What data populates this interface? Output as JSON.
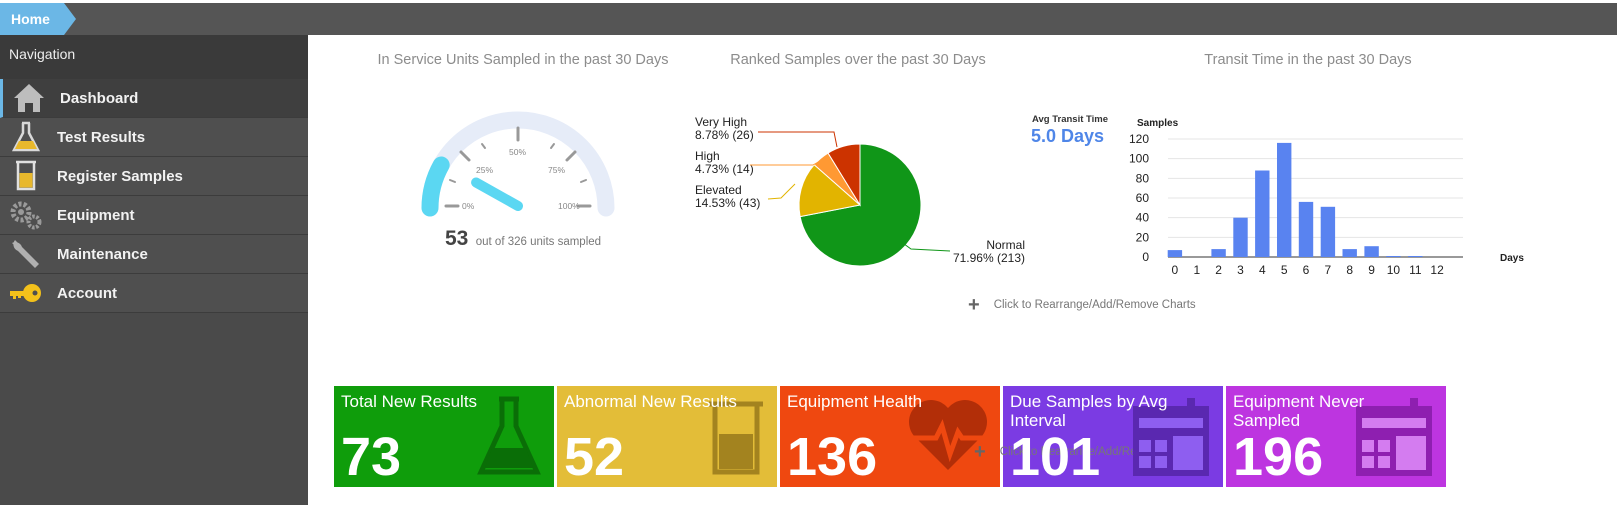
{
  "breadcrumb": {
    "home": "Home"
  },
  "sidebar": {
    "title": "Navigation",
    "items": [
      {
        "label": "Dashboard",
        "icon": "home-icon"
      },
      {
        "label": "Test Results",
        "icon": "flask-icon"
      },
      {
        "label": "Register Samples",
        "icon": "beaker-icon"
      },
      {
        "label": "Equipment",
        "icon": "gears-icon"
      },
      {
        "label": "Maintenance",
        "icon": "wrench-icon"
      },
      {
        "label": "Account",
        "icon": "key-icon"
      }
    ]
  },
  "gauge": {
    "title": "In Service Units Sampled in the past 30 Days",
    "value": "53",
    "caption": "out of 326 units sampled",
    "sampled": 53,
    "total": 326,
    "ticks": [
      "0%",
      "25%",
      "50%",
      "75%",
      "100%"
    ]
  },
  "pie": {
    "title": "Ranked Samples over the past 30 Days",
    "slices": [
      {
        "name": "Normal",
        "label": "71.96% (213)",
        "pct": 71.96,
        "count": 213,
        "color": "#109618"
      },
      {
        "name": "Elevated",
        "label": "14.53% (43)",
        "pct": 14.53,
        "count": 43,
        "color": "#e2b400"
      },
      {
        "name": "High",
        "label": "4.73% (14)",
        "pct": 4.73,
        "count": 14,
        "color": "#ff9933"
      },
      {
        "name": "Very High",
        "label": "8.78% (26)",
        "pct": 8.78,
        "count": 26,
        "color": "#cc3300"
      }
    ]
  },
  "transit": {
    "title": "Transit Time in the past 30 Days",
    "avg_label": "Avg Transit Time",
    "avg_value": "5.0 Days"
  },
  "chart_data": {
    "type": "bar",
    "title": "Transit Time in the past 30 Days",
    "ylabel": "Samples",
    "xlabel": "Days",
    "categories": [
      "0",
      "1",
      "2",
      "3",
      "4",
      "5",
      "6",
      "7",
      "8",
      "9",
      "10",
      "11",
      "12"
    ],
    "values": [
      7,
      0,
      8,
      40,
      88,
      116,
      56,
      51,
      8,
      11,
      1,
      1,
      0
    ],
    "ylim": [
      0,
      120
    ],
    "yticks": [
      "0",
      "20",
      "40",
      "60",
      "80",
      "100",
      "120"
    ],
    "grid": true,
    "color": "#5983f0"
  },
  "rearrange_charts": "Click to Rearrange/Add/Remove Charts",
  "rearrange_tiles": "Click to Rearrange/Add/Remove tiles",
  "tiles": [
    {
      "title": "Total New Results",
      "value": "73",
      "color": "#0f9d0b",
      "icon": "flask-icon"
    },
    {
      "title": "Abnormal New Results",
      "value": "52",
      "color": "#e3bd38",
      "icon": "beaker-icon"
    },
    {
      "title": "Equipment Health",
      "value": "136",
      "color": "#ef4810",
      "icon": "heart-pulse-icon"
    },
    {
      "title": "Due Samples by Avg Interval",
      "value": "101",
      "color": "#7b3be3",
      "icon": "calendar-icon"
    },
    {
      "title": "Equipment Never Sampled",
      "value": "196",
      "color": "#bd35e0",
      "icon": "calendar-icon"
    }
  ]
}
